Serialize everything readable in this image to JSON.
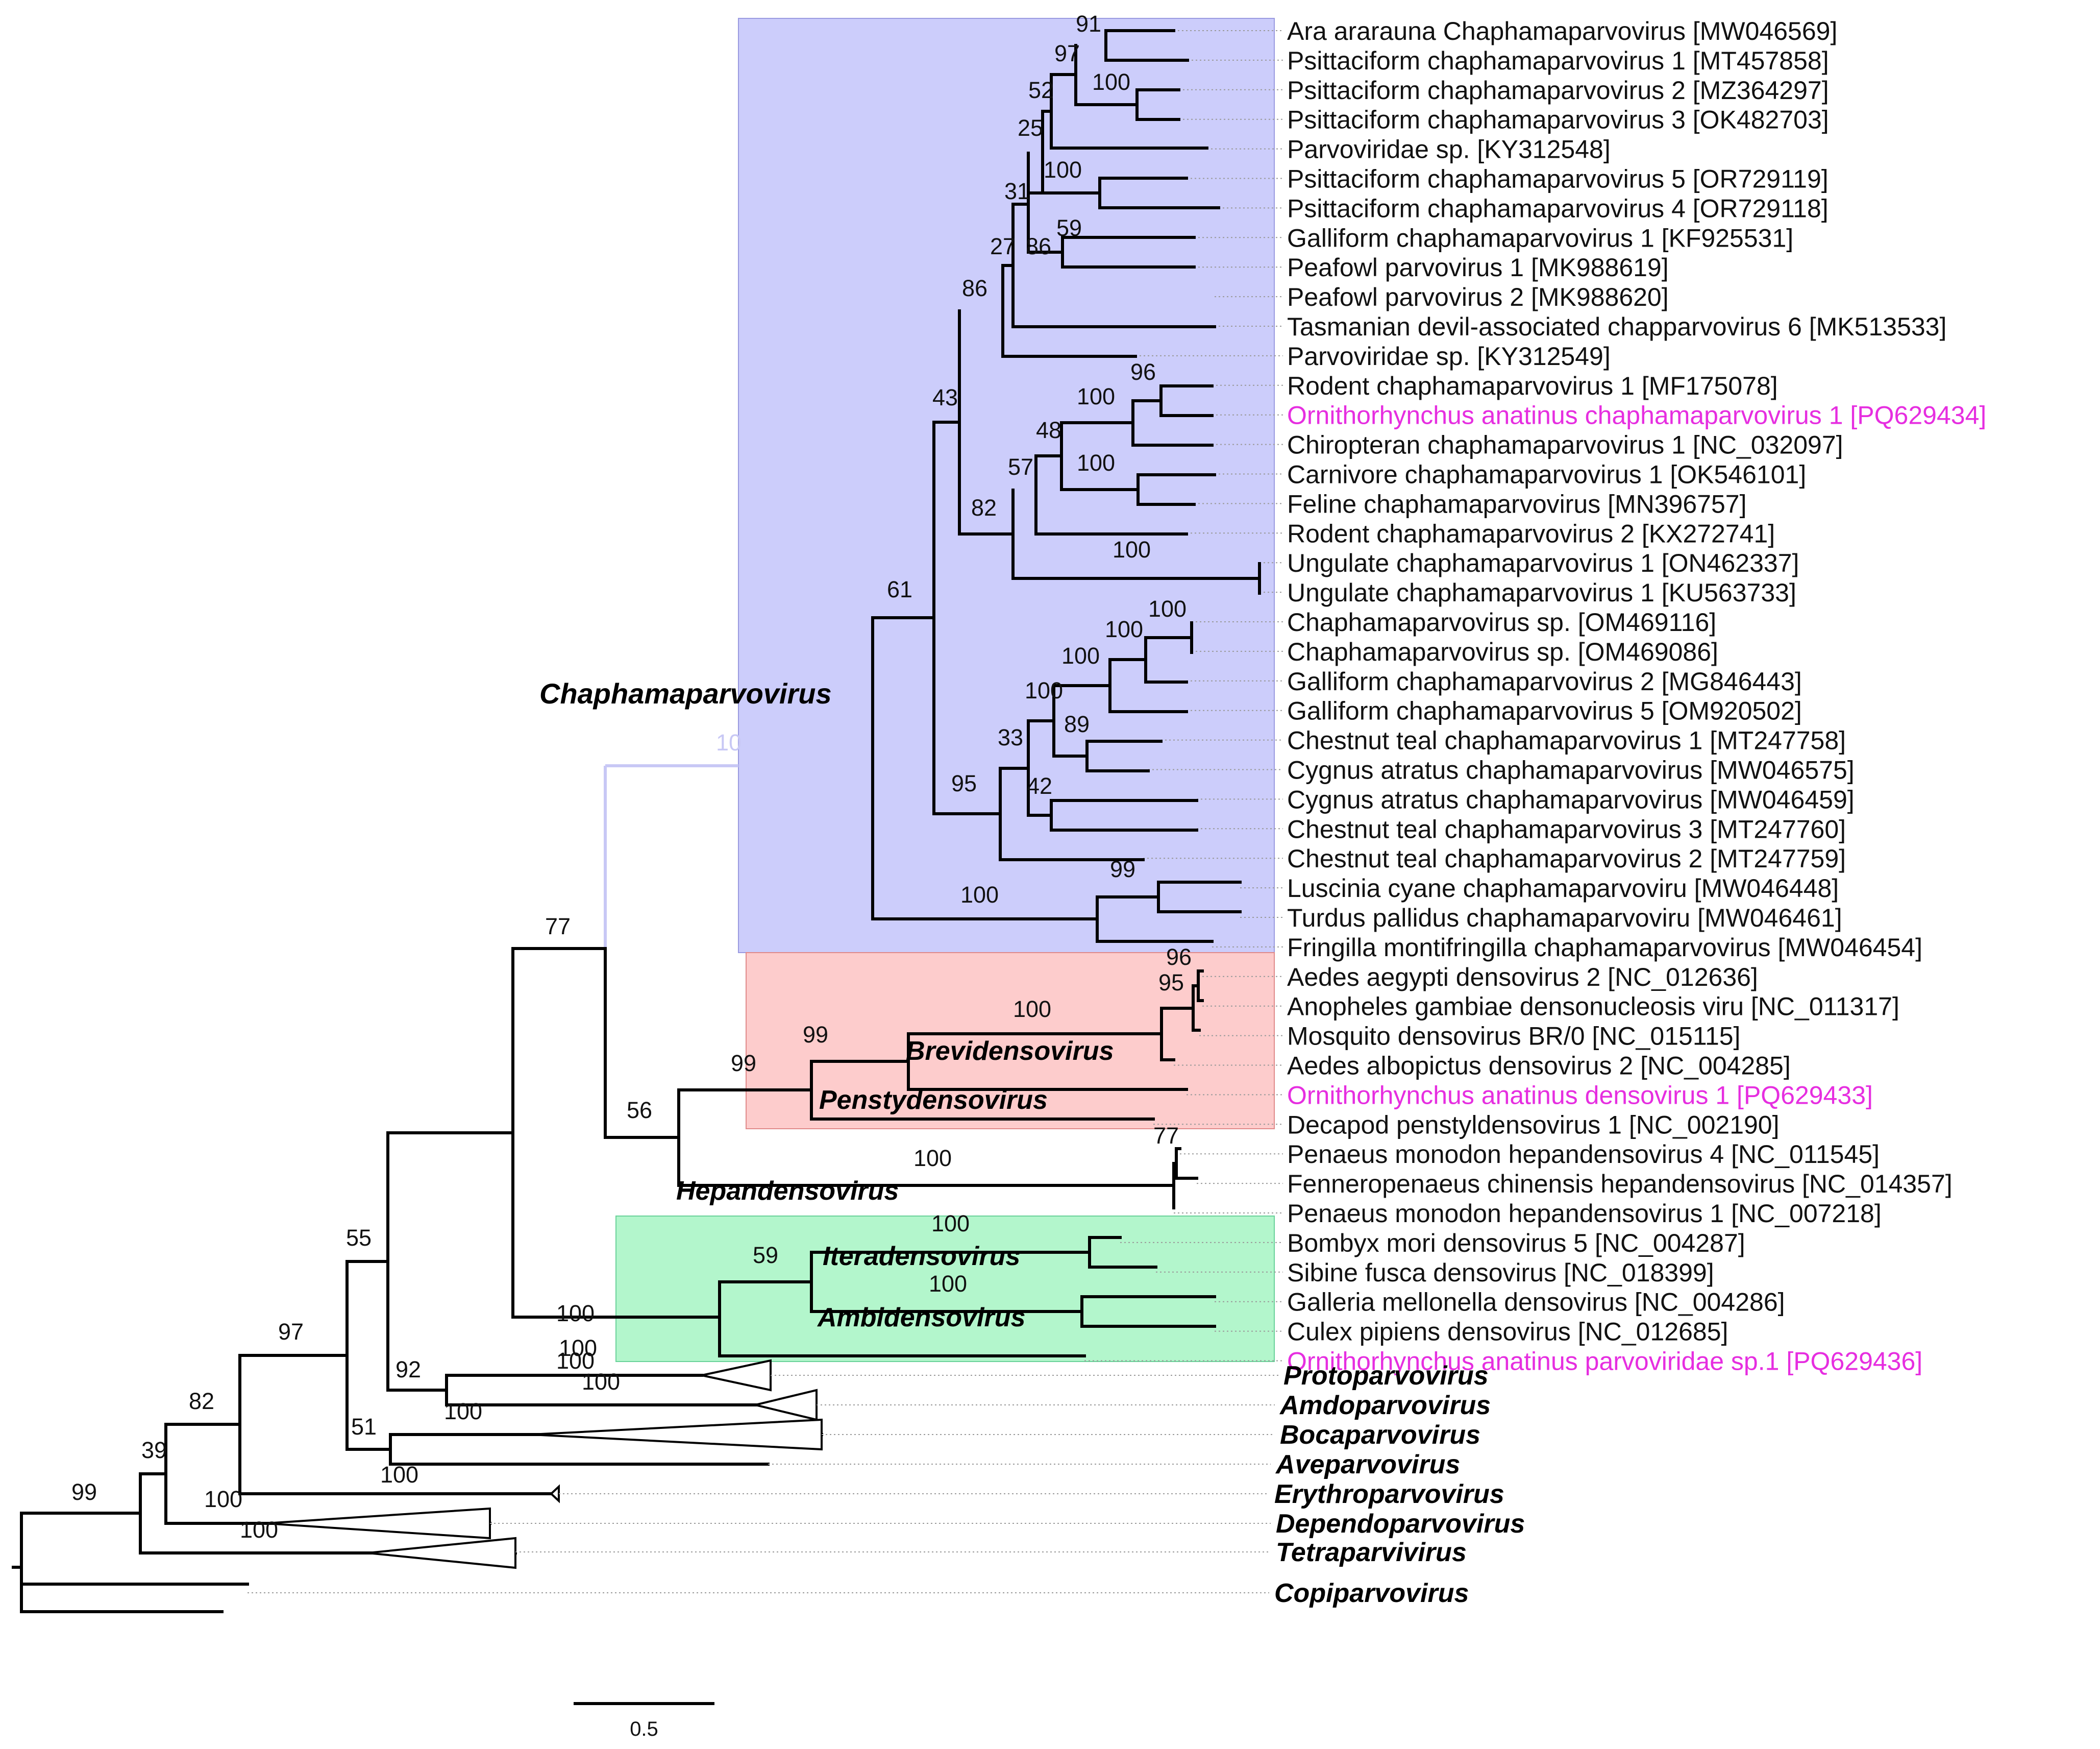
{
  "figure": {
    "colors": {
      "chapha_box": "#cccdfb",
      "brevi_box": "#fdcccc",
      "itera_box": "#b3f6cc",
      "highlight_text": "#e62ee0",
      "branch": "#000000"
    },
    "clade_labels": {
      "chaphamaparvovirus": "Chaphamaparvovirus",
      "brevidensovirus": "Brevidensovirus",
      "penstydensovirus": "Penstydensovirus",
      "hepandensovirus": "Hepandensovirus",
      "iteradensovirus": "Iteradensovirus",
      "ambidensovirus": "Ambidensovirus"
    },
    "taxa": [
      {
        "name": "Ara ararauna Chaphamaparvovirus [MW046569]",
        "highlight": false
      },
      {
        "name": "Psittaciform chaphamaparvovirus 1 [MT457858]",
        "highlight": false
      },
      {
        "name": "Psittaciform chaphamaparvovirus 2 [MZ364297]",
        "highlight": false
      },
      {
        "name": "Psittaciform chaphamaparvovirus 3 [OK482703]",
        "highlight": false
      },
      {
        "name": "Parvoviridae sp. [KY312548]",
        "highlight": false
      },
      {
        "name": "Psittaciform chaphamaparvovirus 5 [OR729119]",
        "highlight": false
      },
      {
        "name": "Psittaciform chaphamaparvovirus 4 [OR729118]",
        "highlight": false
      },
      {
        "name": "Galliform chaphamaparvovirus 1 [KF925531]",
        "highlight": false
      },
      {
        "name": "Peafowl parvovirus 1 [MK988619]",
        "highlight": false
      },
      {
        "name": "Peafowl parvovirus 2 [MK988620]",
        "highlight": false
      },
      {
        "name": "Tasmanian devil-associated chapparvovirus 6 [MK513533]",
        "highlight": false
      },
      {
        "name": "Parvoviridae sp. [KY312549]",
        "highlight": false
      },
      {
        "name": "Rodent chaphamaparvovirus 1 [MF175078]",
        "highlight": false
      },
      {
        "name": "Ornithorhynchus anatinus chaphamaparvovirus 1 [PQ629434]",
        "highlight": true
      },
      {
        "name": "Chiropteran chaphamaparvovirus 1 [NC_032097]",
        "highlight": false
      },
      {
        "name": "Carnivore chaphamaparvovirus 1 [OK546101]",
        "highlight": false
      },
      {
        "name": "Feline chaphamaparvovirus [MN396757]",
        "highlight": false
      },
      {
        "name": "Rodent chaphamaparvovirus 2 [KX272741]",
        "highlight": false
      },
      {
        "name": "Ungulate chaphamaparvovirus 1 [ON462337]",
        "highlight": false
      },
      {
        "name": "Ungulate chaphamaparvovirus 1 [KU563733]",
        "highlight": false
      },
      {
        "name": "Chaphamaparvovirus sp. [OM469116]",
        "highlight": false
      },
      {
        "name": "Chaphamaparvovirus sp. [OM469086]",
        "highlight": false
      },
      {
        "name": "Galliform chaphamaparvovirus 2 [MG846443]",
        "highlight": false
      },
      {
        "name": "Galliform chaphamaparvovirus 5 [OM920502]",
        "highlight": false
      },
      {
        "name": "Chestnut teal chaphamaparvovirus 1 [MT247758]",
        "highlight": false
      },
      {
        "name": "Cygnus atratus chaphamaparvovirus [MW046575]",
        "highlight": false
      },
      {
        "name": "Cygnus atratus chaphamaparvovirus [MW046459]",
        "highlight": false
      },
      {
        "name": "Chestnut teal chaphamaparvovirus 3 [MT247760]",
        "highlight": false
      },
      {
        "name": "Chestnut teal chaphamaparvovirus 2 [MT247759]",
        "highlight": false
      },
      {
        "name": "Luscinia cyane chaphamaparvoviru [MW046448]",
        "highlight": false
      },
      {
        "name": "Turdus pallidus chaphamaparvoviru [MW046461]",
        "highlight": false
      },
      {
        "name": "Fringilla montifringilla chaphamaparvovirus [MW046454]",
        "highlight": false
      },
      {
        "name": "Aedes aegypti densovirus 2 [NC_012636]",
        "highlight": false
      },
      {
        "name": "Anopheles gambiae densonucleosis viru [NC_011317]",
        "highlight": false
      },
      {
        "name": "Mosquito densovirus BR/0 [NC_015115]",
        "highlight": false
      },
      {
        "name": "Aedes albopictus densovirus 2 [NC_004285]",
        "highlight": false
      },
      {
        "name": "Ornithorhynchus anatinus densovirus 1 [PQ629433]",
        "highlight": true
      },
      {
        "name": "Decapod penstyldensovirus 1 [NC_002190]",
        "highlight": false
      },
      {
        "name": "Penaeus monodon hepandensovirus 4 [NC_011545]",
        "highlight": false
      },
      {
        "name": "Fenneropenaeus chinensis hepandensovirus [NC_014357]",
        "highlight": false
      },
      {
        "name": "Penaeus monodon hepandensovirus 1 [NC_007218]",
        "highlight": false
      },
      {
        "name": "Bombyx mori densovirus 5 [NC_004287]",
        "highlight": false
      },
      {
        "name": "Sibine fusca densovirus [NC_018399]",
        "highlight": false
      },
      {
        "name": "Galleria mellonella densovirus [NC_004286]",
        "highlight": false
      },
      {
        "name": "Culex pipiens densovirus [NC_012685]",
        "highlight": false
      },
      {
        "name": "Ornithorhynchus anatinus parvoviridae sp.1 [PQ629436]",
        "highlight": true
      }
    ],
    "collapsed_genera": [
      "Protoparvovirus",
      "Amdoparvovirus",
      "Bocaparvovirus",
      "Aveparvovirus",
      "Erythroparvovirus",
      "Dependoparvovirus",
      "Tetraparvivirus",
      "Copiparvovirus"
    ],
    "support_values": [
      "91",
      "97",
      "100",
      "52",
      "25",
      "100",
      "31",
      "59",
      "27",
      "86",
      "86",
      "96",
      "100",
      "43",
      "48",
      "100",
      "57",
      "82",
      "100",
      "61",
      "100",
      "100",
      "100",
      "100",
      "89",
      "33",
      "42",
      "95",
      "99",
      "100",
      "10",
      "77",
      "96",
      "95",
      "100",
      "99",
      "99",
      "56",
      "100",
      "77",
      "100",
      "100",
      "59",
      "100",
      "100",
      "55",
      "92",
      "100",
      "100",
      "100",
      "97",
      "51",
      "100",
      "82",
      "39",
      "100",
      "100",
      "99"
    ],
    "scale_bar": {
      "label": "0.5",
      "value": 0.5
    }
  }
}
